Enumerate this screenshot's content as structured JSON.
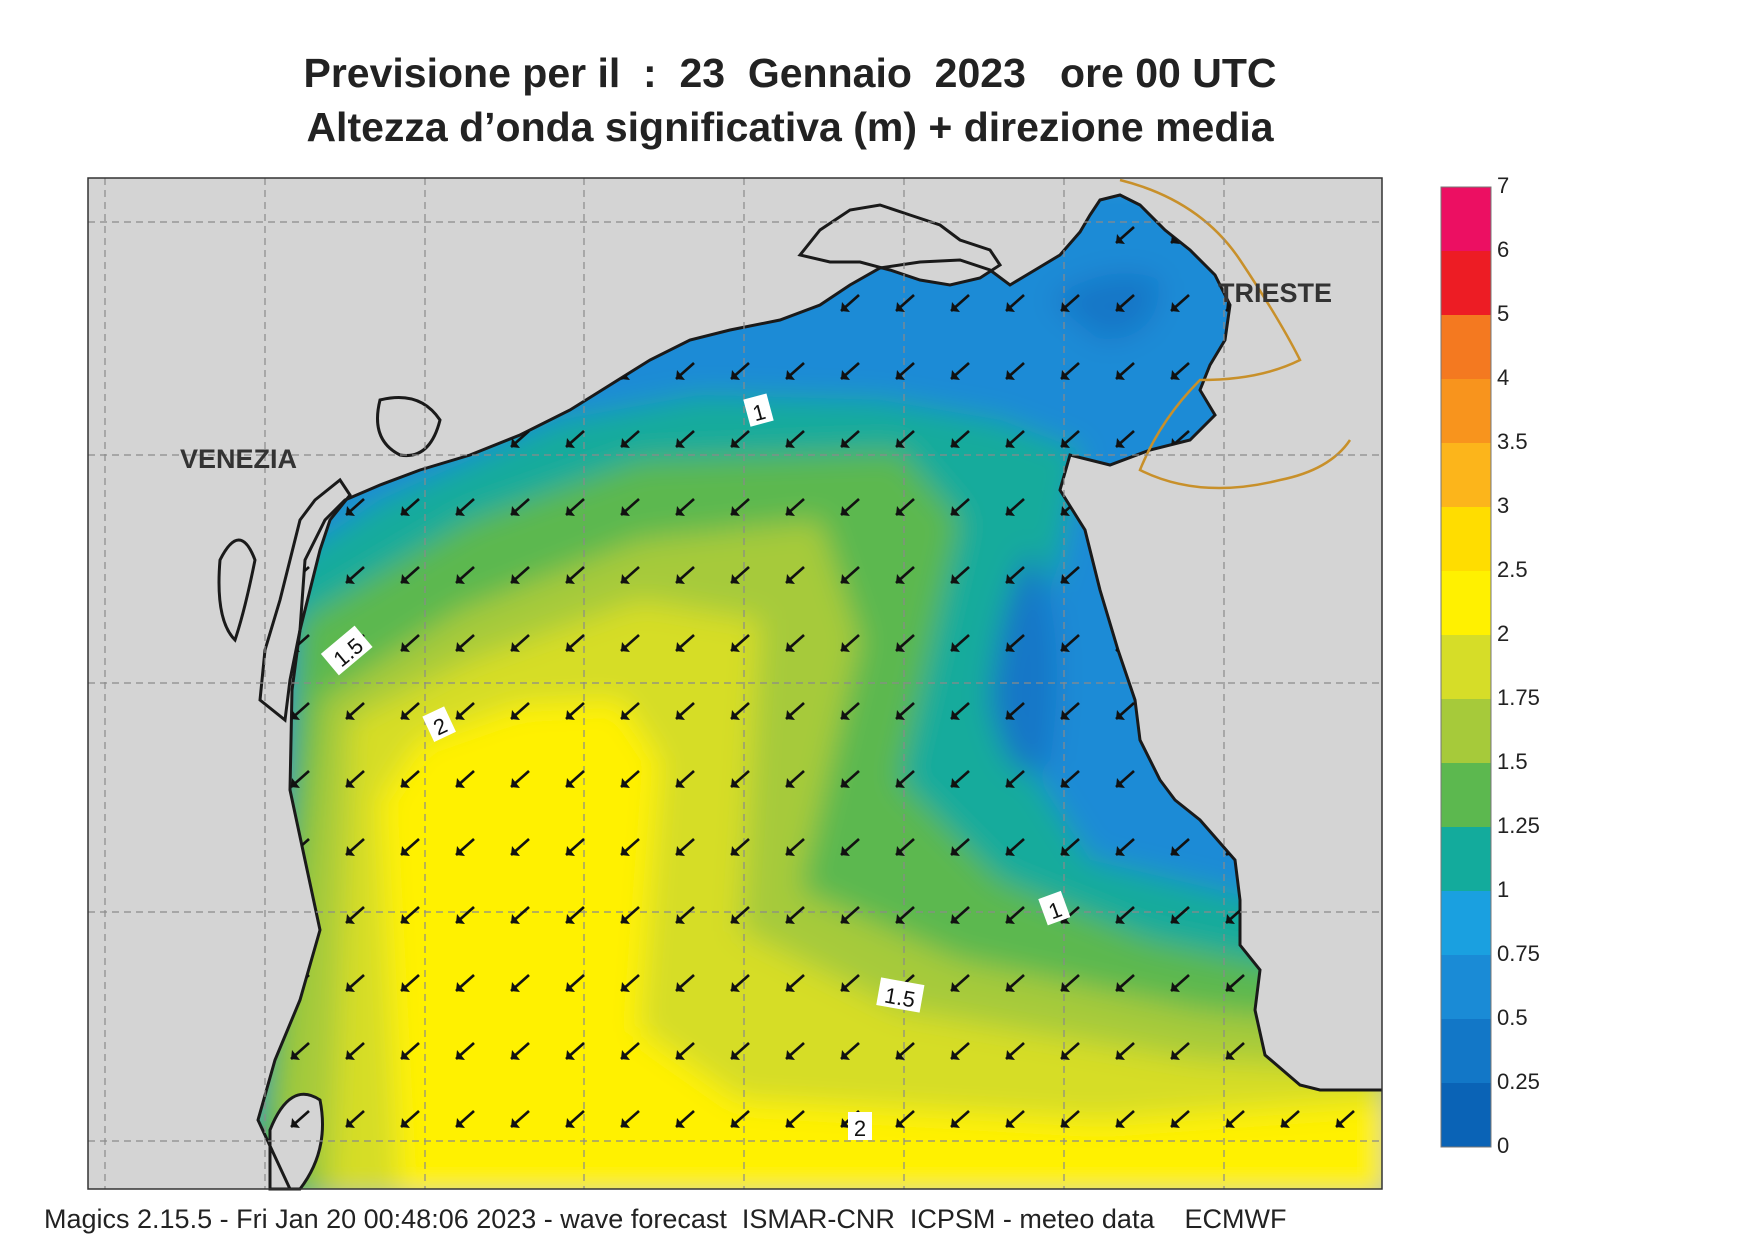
{
  "title": {
    "line1": "Previsione per il  :  23  Gennaio  2023   ore 00 UTC",
    "line2": "Altezza d’onda significativa (m) + direzione media"
  },
  "places": {
    "venezia": "VENEZIA",
    "trieste": "TRIESTE"
  },
  "contour_labels": {
    "c1a": "1",
    "c15a": "1.5",
    "c2a": "2",
    "c1b": "1",
    "c15b": "1.5",
    "c2b": "2"
  },
  "legend": {
    "levels": [
      "0",
      "0.25",
      "0.5",
      "0.75",
      "1",
      "1.25",
      "1.5",
      "1.75",
      "2",
      "2.5",
      "3",
      "3.5",
      "4",
      "5",
      "6",
      "7"
    ],
    "colors": [
      "#0a63b6",
      "#1277c7",
      "#1a8bd6",
      "#1aa0e0",
      "#13ab9c",
      "#5cb84f",
      "#a6ca3a",
      "#d6dd28",
      "#fff100",
      "#ffdd00",
      "#fcb51b",
      "#f8941d",
      "#f47920",
      "#ed1c24",
      "#ec0f62"
    ]
  },
  "footer": "Magics 2.15.5 - Fri Jan 20 00:48:06 2023 - wave forecast  ISMAR-CNR  ICPSM - meteo data    ECMWF",
  "colors": {
    "land": "#d4d4d4",
    "coast": "#1a1a1a",
    "border": "#c8902a",
    "arrow": "#111111",
    "grid": "#8a8a8a"
  }
}
